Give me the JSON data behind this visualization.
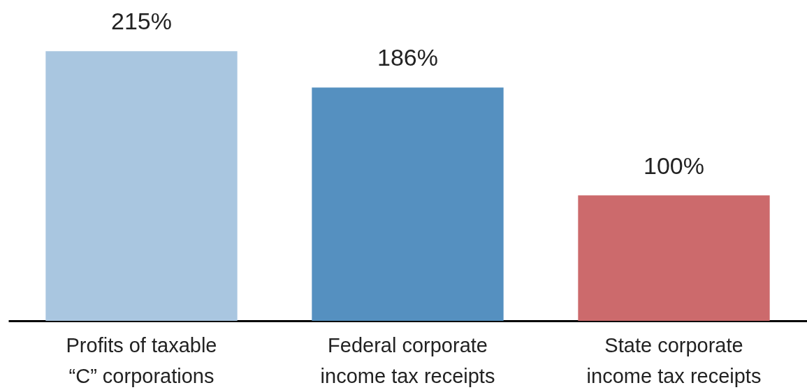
{
  "chart_data": {
    "type": "bar",
    "categories": [
      "Profits of taxable “C” corporations",
      "Federal corporate income tax receipts",
      "State corporate income tax receipts"
    ],
    "values": [
      215,
      186,
      100
    ],
    "colors": [
      "#a9c6e0",
      "#5590c0",
      "#cc6a6c"
    ],
    "value_labels": [
      "215%",
      "186%",
      "100%"
    ]
  }
}
